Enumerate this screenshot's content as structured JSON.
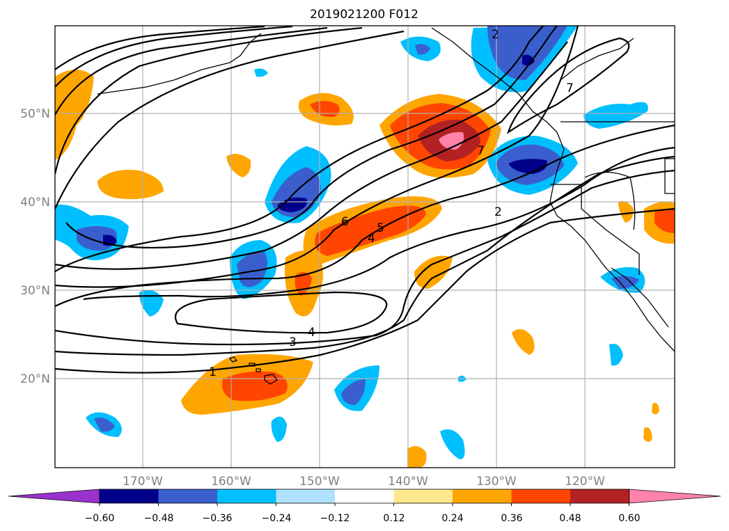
{
  "title": "2019021200 F012",
  "lat_labels": [
    "50°N",
    "40°N",
    "30°N",
    "20°N"
  ],
  "lon_labels": [
    "170°W",
    "160°W",
    "150°W",
    "140°W",
    "130°W",
    "120°W"
  ],
  "colorbar": {
    "tick_labels": [
      "−0.60",
      "−0.48",
      "−0.36",
      "−0.24",
      "−0.12",
      "0.12",
      "0.24",
      "0.36",
      "0.48",
      "0.60"
    ],
    "colors": [
      "#9a32cd",
      "#00008b",
      "#3a5fcd",
      "#00bfff",
      "#b0e2ff",
      "#ffffff",
      "#ffe78f",
      "#ffa500",
      "#ff4500",
      "#b22222",
      "#ff82ab"
    ]
  },
  "contour_labels": [
    "1",
    "2",
    "3",
    "4",
    "4",
    "5",
    "6",
    "7",
    "7",
    "2"
  ]
}
